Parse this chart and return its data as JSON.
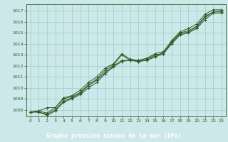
{
  "xlabel": "Graphe pression niveau de la mer (hPa)",
  "ylim": [
    1007.4,
    1017.6
  ],
  "xlim": [
    -0.5,
    23.5
  ],
  "yticks": [
    1008,
    1009,
    1010,
    1011,
    1012,
    1013,
    1014,
    1015,
    1016,
    1017
  ],
  "xticks": [
    0,
    1,
    2,
    3,
    4,
    5,
    6,
    7,
    8,
    9,
    10,
    11,
    12,
    13,
    14,
    15,
    16,
    17,
    18,
    19,
    20,
    21,
    22,
    23
  ],
  "background_color": "#cce8e8",
  "grid_color": "#99cccc",
  "line_color": "#2d5a27",
  "label_bg": "#2d5a27",
  "label_fg": "#ffffff",
  "series": [
    [
      1007.8,
      1007.9,
      1007.7,
      1008.2,
      1009.0,
      1009.2,
      1009.6,
      1010.3,
      1010.8,
      1011.6,
      1012.1,
      1013.0,
      1012.5,
      1012.5,
      1012.6,
      1013.0,
      1013.1,
      1014.2,
      1015.0,
      1015.2,
      1015.6,
      1016.5,
      1016.9,
      1017.0
    ],
    [
      1007.8,
      1007.8,
      1007.5,
      1007.9,
      1008.7,
      1009.0,
      1009.4,
      1010.0,
      1010.5,
      1011.3,
      1011.9,
      1012.4,
      1012.5,
      1012.4,
      1012.5,
      1012.8,
      1013.1,
      1014.0,
      1014.8,
      1015.0,
      1015.4,
      1016.2,
      1016.8,
      1016.8
    ],
    [
      1007.8,
      1007.8,
      1007.6,
      1008.0,
      1008.8,
      1009.1,
      1009.5,
      1010.2,
      1010.7,
      1011.4,
      1012.0,
      1012.5,
      1012.5,
      1012.4,
      1012.5,
      1012.9,
      1013.2,
      1014.1,
      1014.9,
      1015.1,
      1015.5,
      1016.4,
      1016.9,
      1016.9
    ],
    [
      1007.8,
      1007.9,
      1008.2,
      1008.2,
      1009.1,
      1009.3,
      1009.8,
      1010.5,
      1011.0,
      1011.8,
      1012.2,
      1013.1,
      1012.6,
      1012.5,
      1012.7,
      1013.1,
      1013.3,
      1014.3,
      1015.1,
      1015.4,
      1015.8,
      1016.7,
      1017.1,
      1017.1
    ]
  ]
}
